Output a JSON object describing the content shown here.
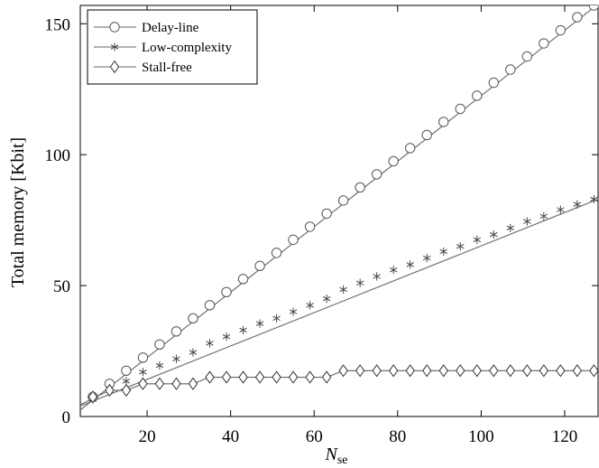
{
  "chart_data": {
    "type": "line",
    "xlabel": "N",
    "xlabel_sub": "se",
    "ylabel": "Total memory [Kbit]",
    "xlim": [
      4,
      128
    ],
    "ylim": [
      0,
      157
    ],
    "xticks": [
      20,
      40,
      60,
      80,
      100,
      120
    ],
    "yticks": [
      0,
      50,
      100,
      150
    ],
    "grid": false,
    "legend_position": "top-left",
    "colors": {
      "line": "#666666",
      "marker": "#555555",
      "axis": "#000000"
    },
    "series": [
      {
        "name": "Delay-line",
        "marker": "circle",
        "line": [
          [
            4,
            2.5
          ],
          [
            128,
            157.5
          ]
        ],
        "x": [
          7,
          11,
          15,
          19,
          23,
          27,
          31,
          35,
          39,
          43,
          47,
          51,
          55,
          59,
          63,
          67,
          71,
          75,
          79,
          83,
          87,
          91,
          95,
          99,
          103,
          107,
          111,
          115,
          119,
          123,
          127
        ],
        "y": [
          7.5,
          12.5,
          17.5,
          22.5,
          27.5,
          32.5,
          37.5,
          42.5,
          47.5,
          52.5,
          57.5,
          62.5,
          67.5,
          72.5,
          77.5,
          82.5,
          87.5,
          92.5,
          97.5,
          102.5,
          107.5,
          112.5,
          117.5,
          122.5,
          127.5,
          132.5,
          137.5,
          142.5,
          147.5,
          152.5,
          157.0
        ]
      },
      {
        "name": "Low-complexity",
        "marker": "star",
        "line": [
          [
            4,
            4
          ],
          [
            128,
            83
          ]
        ],
        "x": [
          7,
          11,
          15,
          19,
          23,
          27,
          31,
          35,
          39,
          43,
          47,
          51,
          55,
          59,
          63,
          67,
          71,
          75,
          79,
          83,
          87,
          91,
          95,
          99,
          103,
          107,
          111,
          115,
          119,
          123,
          127
        ],
        "y": [
          6.5,
          10.5,
          13.5,
          17,
          19.5,
          22,
          24.5,
          28,
          30.5,
          33,
          35.5,
          37.5,
          40,
          42.5,
          45,
          48.5,
          51,
          53.5,
          56,
          58,
          60.5,
          63,
          65,
          67.5,
          69.5,
          72,
          74.5,
          76.5,
          79,
          81,
          83
        ]
      },
      {
        "name": "Stall-free",
        "marker": "diamond",
        "line": [
          [
            4,
            4.5
          ],
          [
            11,
            10
          ],
          [
            15,
            10
          ],
          [
            19,
            12.5
          ],
          [
            31,
            12.5
          ],
          [
            35,
            15
          ],
          [
            63,
            15
          ],
          [
            67,
            17.5
          ],
          [
            128,
            17.5
          ]
        ],
        "x": [
          7,
          11,
          15,
          19,
          23,
          27,
          31,
          35,
          39,
          43,
          47,
          51,
          55,
          59,
          63,
          67,
          71,
          75,
          79,
          83,
          87,
          91,
          95,
          99,
          103,
          107,
          111,
          115,
          119,
          123,
          127
        ],
        "y": [
          7.5,
          10,
          10,
          12.5,
          12.5,
          12.5,
          12.5,
          15,
          15,
          15,
          15,
          15,
          15,
          15,
          15,
          17.5,
          17.5,
          17.5,
          17.5,
          17.5,
          17.5,
          17.5,
          17.5,
          17.5,
          17.5,
          17.5,
          17.5,
          17.5,
          17.5,
          17.5,
          17.5
        ]
      }
    ]
  }
}
